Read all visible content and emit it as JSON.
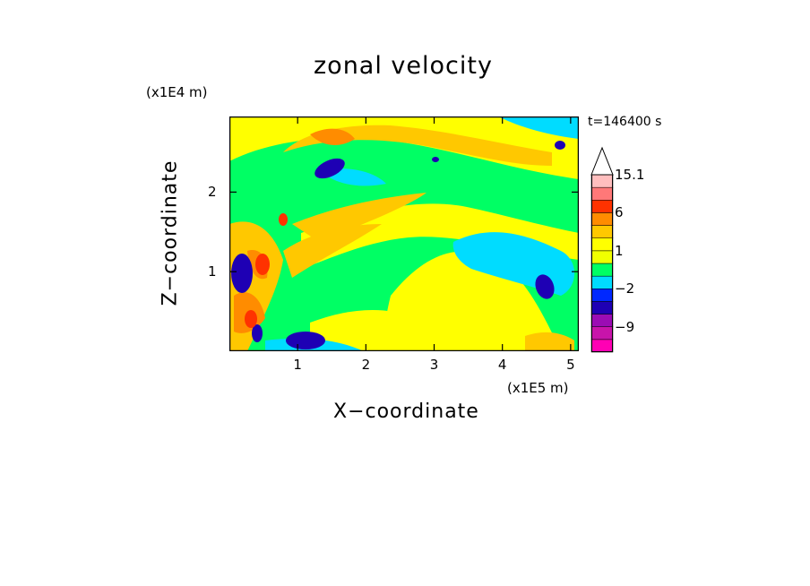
{
  "chart_data": {
    "type": "heatmap",
    "title": "zonal velocity",
    "xlabel": "X−coordinate",
    "ylabel": "Z−coordinate",
    "x_unit_label": "(x1E5 m)",
    "y_unit_label": "(x1E4 m)",
    "time_label": "t=146400 s",
    "xlim": [
      0,
      5.12
    ],
    "ylim": [
      0,
      2.95
    ],
    "x_ticks": [
      "1",
      "2",
      "3",
      "4",
      "5"
    ],
    "x_tick_values": [
      1,
      2,
      3,
      4,
      5
    ],
    "y_ticks": [
      "1",
      "2"
    ],
    "y_tick_values": [
      1,
      2
    ],
    "colorbar": {
      "levels": [
        -15,
        -12,
        -9,
        -6,
        -4,
        -2,
        -1,
        0,
        1,
        2,
        4,
        6,
        9,
        12,
        15.1
      ],
      "colors": [
        "#ff00b4",
        "#c814aa",
        "#9b0cb4",
        "#1e00b4",
        "#0028ff",
        "#00dcff",
        "#00ff64",
        "#f0ff00",
        "#ffff00",
        "#ffc800",
        "#ff8c00",
        "#ff3200",
        "#ff7878",
        "#ffbebe"
      ],
      "extend_top": true,
      "tick_labels": [
        "15.1",
        "6",
        "1",
        "−2",
        "−9"
      ],
      "tick_values": [
        15.1,
        6,
        1,
        -2,
        -9
      ]
    }
  }
}
